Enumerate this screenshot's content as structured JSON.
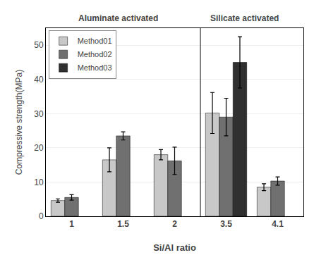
{
  "chart_data": {
    "type": "bar",
    "xlabel": "Si/Al ratio",
    "ylabel": "Compressive strength(MPa)",
    "categories": [
      "1",
      "1.5",
      "2",
      "3.5",
      "4.1"
    ],
    "series": [
      {
        "name": "Method01",
        "color": "#c8c8c8",
        "values": [
          4.6,
          16.5,
          18.0,
          30.2,
          8.5
        ],
        "errors": [
          0.5,
          3.5,
          1.5,
          6.0,
          1.0
        ]
      },
      {
        "name": "Method02",
        "color": "#707070",
        "values": [
          5.5,
          23.5,
          16.2,
          29.0,
          10.3
        ],
        "errors": [
          0.8,
          1.2,
          4.0,
          5.5,
          1.2
        ]
      },
      {
        "name": "Method03",
        "color": "#303030",
        "values": [
          null,
          null,
          null,
          45.0,
          null
        ],
        "errors": [
          null,
          null,
          null,
          7.5,
          null
        ]
      }
    ],
    "ylim": [
      0,
      55
    ],
    "yticks": [
      0,
      10,
      20,
      30,
      40,
      50
    ],
    "grid": true,
    "legend": "upper left",
    "annotations": [
      "Aluminate activated",
      "Silicate activated"
    ]
  }
}
